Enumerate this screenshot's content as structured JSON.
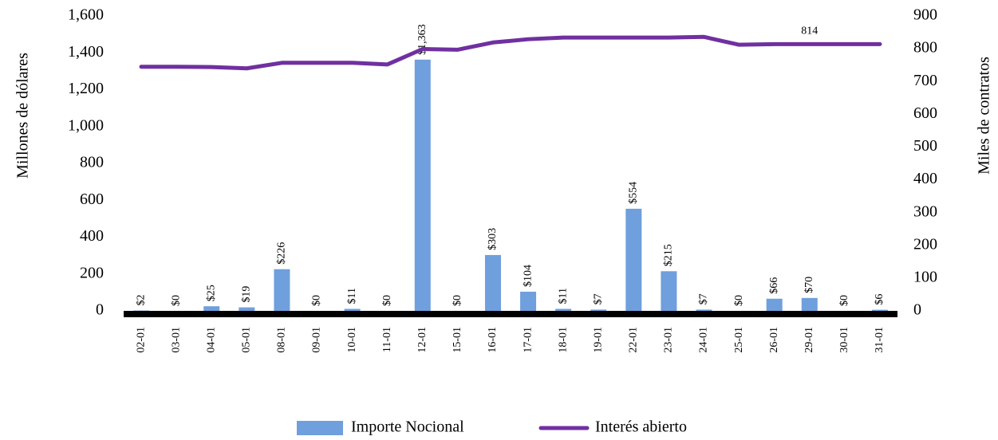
{
  "chart_data": {
    "type": "bar-line",
    "y_label": "Millones de dólares",
    "y2_label": "Miles de contratos",
    "categories": [
      "02-01",
      "03-01",
      "04-01",
      "05-01",
      "08-01",
      "09-01",
      "10-01",
      "11-01",
      "12-01",
      "15-01",
      "16-01",
      "17-01",
      "18-01",
      "19-01",
      "22-01",
      "23-01",
      "24-01",
      "25-01",
      "26-01",
      "29-01",
      "30-01",
      "31-01"
    ],
    "series": [
      {
        "name": "Importe Nocional",
        "type": "bar",
        "color": "#6f9fdc",
        "values": [
          2,
          0,
          25,
          19,
          226,
          0,
          11,
          0,
          1363,
          0,
          303,
          104,
          11,
          7,
          554,
          215,
          7,
          0,
          66,
          70,
          0,
          6
        ],
        "value_labels": [
          "$2",
          "$0",
          "$25",
          "$19",
          "$226",
          "$0",
          "$11",
          "$0",
          "$1,363",
          "$0",
          "$303",
          "$104",
          "$11",
          "$7",
          "$554",
          "$215",
          "$7",
          "$0",
          "$66",
          "$70",
          "$0",
          "$6"
        ]
      },
      {
        "name": "Interés abierto",
        "type": "line",
        "axis": "y2",
        "color": "#7030a0",
        "values": [
          745,
          745,
          744,
          740,
          757,
          757,
          757,
          752,
          799,
          797,
          819,
          829,
          834,
          834,
          834,
          834,
          836,
          812,
          814,
          814,
          814,
          814
        ],
        "value_labels": [
          null,
          null,
          null,
          null,
          null,
          null,
          null,
          null,
          null,
          null,
          null,
          null,
          null,
          null,
          null,
          null,
          null,
          null,
          null,
          "814",
          null,
          null
        ]
      }
    ],
    "ylim": [
      0,
      1600
    ],
    "yticks": [
      0,
      200,
      400,
      600,
      800,
      {
        "value": 1000,
        "label": "1,000"
      },
      {
        "value": 1200,
        "label": "1,200"
      },
      {
        "value": 1400,
        "label": "1,400"
      },
      {
        "value": 1600,
        "label": "1,600"
      }
    ],
    "y2lim": [
      0,
      900
    ],
    "y2ticks": [
      0,
      100,
      200,
      300,
      400,
      500,
      600,
      700,
      800,
      900
    ],
    "grid": false
  }
}
